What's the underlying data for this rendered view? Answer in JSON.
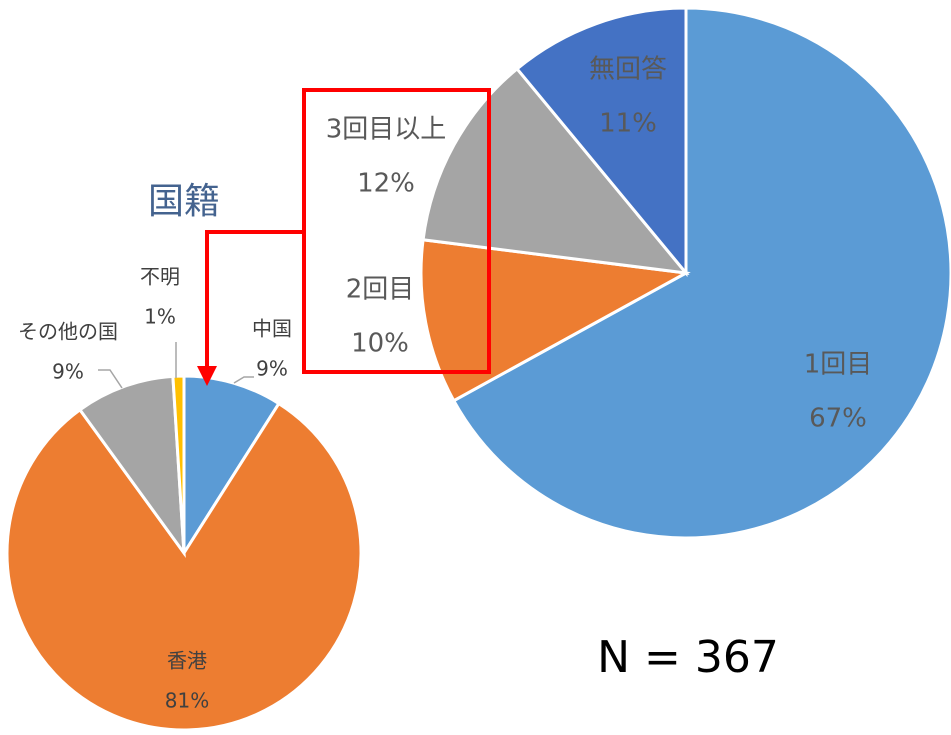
{
  "chart_data": [
    {
      "type": "pie",
      "annotation": "N = 367",
      "categories": [
        "1回目",
        "2回目",
        "3回目以上",
        "無回答"
      ],
      "values": [
        67,
        10,
        12,
        11
      ],
      "value_labels": [
        "67%",
        "10%",
        "12%",
        "11%"
      ],
      "colors": [
        "#5b9bd5",
        "#ed7d31",
        "#a5a5a5",
        "#4472c4"
      ]
    },
    {
      "type": "pie",
      "title": "国籍",
      "categories": [
        "中国",
        "香港",
        "その他の国",
        "不明"
      ],
      "values": [
        9,
        81,
        9,
        1
      ],
      "value_labels": [
        "9%",
        "81%",
        "9%",
        "1%"
      ],
      "colors": [
        "#5b9bd5",
        "#ed7d31",
        "#a5a5a5",
        "#ffc000"
      ]
    }
  ]
}
